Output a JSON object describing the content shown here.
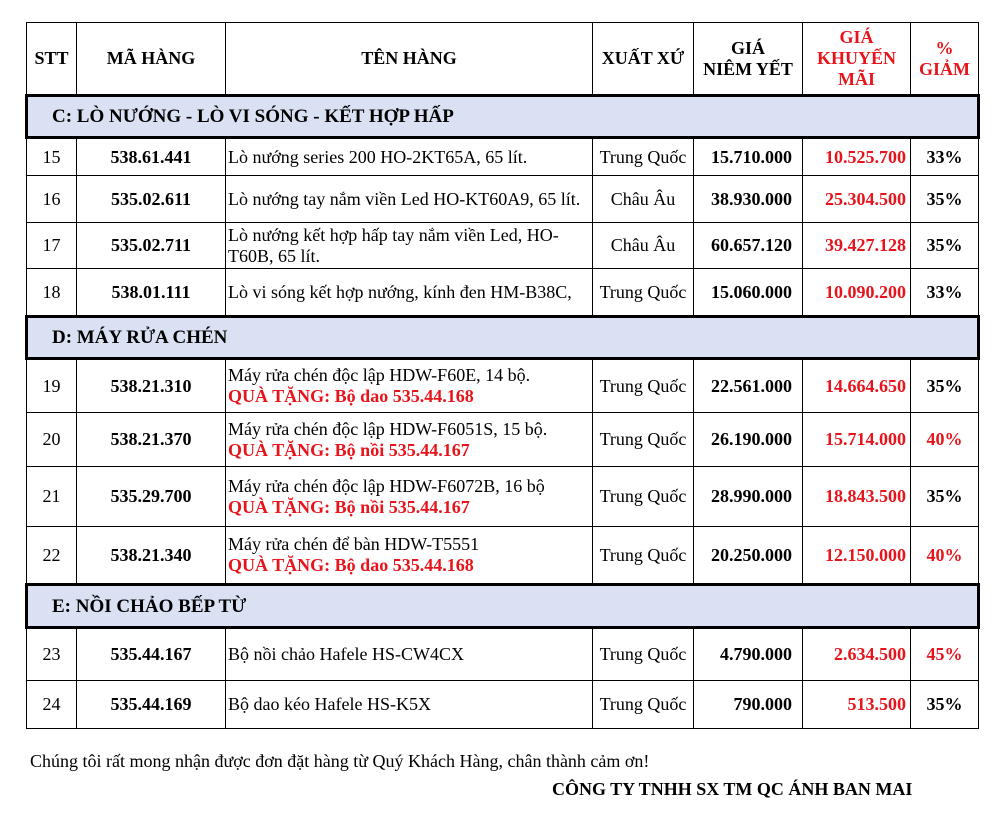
{
  "header": {
    "stt": "STT",
    "code": "MÃ HÀNG",
    "name": "TÊN HÀNG",
    "origin": "XUẤT XỨ",
    "list_price_1": "GIÁ",
    "list_price_2": "NIÊM YẾT",
    "promo_1": "GIÁ",
    "promo_2": "KHUYẾN",
    "promo_3": "MÃI",
    "discount_1": "%",
    "discount_2": "GIẢM"
  },
  "colors": {
    "red": "#e8141b",
    "section_bg": "#d9e1f2"
  },
  "sections": [
    {
      "title": "C: LÒ NƯỚNG - LÒ VI SÓNG - KẾT HỢP HẤP",
      "rows": [
        {
          "stt": "15",
          "code": "538.61.441",
          "name": "Lò nướng series 200 HO-2KT65A, 65 lít.",
          "gift": "",
          "origin": "Trung Quốc",
          "list": "15.710.000",
          "promo": "10.525.700",
          "pct": "33%",
          "pct_red": false
        },
        {
          "stt": "16",
          "code": "535.02.611",
          "name": "Lò nướng tay nắm viền Led HO-KT60A9, 65 lít.",
          "gift": "",
          "origin": "Châu Âu",
          "list": "38.930.000",
          "promo": "25.304.500",
          "pct": "35%",
          "pct_red": false
        },
        {
          "stt": "17",
          "code": "535.02.711",
          "name": "Lò nướng kết hợp hấp tay nắm viền Led, HO-T60B, 65 lít.",
          "gift": "",
          "origin": "Châu Âu",
          "list": "60.657.120",
          "promo": "39.427.128",
          "pct": "35%",
          "pct_red": false
        },
        {
          "stt": "18",
          "code": "538.01.111",
          "name": "Lò vi sóng kết hợp nướng, kính đen HM-B38C,",
          "gift": "",
          "origin": "Trung Quốc",
          "list": "15.060.000",
          "promo": "10.090.200",
          "pct": "33%",
          "pct_red": false
        }
      ]
    },
    {
      "title": "D: MÁY RỬA CHÉN",
      "rows": [
        {
          "stt": "19",
          "code": "538.21.310",
          "name": "Máy rửa chén độc lập HDW-F60E, 14 bộ.",
          "gift": "QUÀ TẶNG: Bộ dao 535.44.168",
          "origin": "Trung Quốc",
          "list": "22.561.000",
          "promo": "14.664.650",
          "pct": "35%",
          "pct_red": false
        },
        {
          "stt": "20",
          "code": "538.21.370",
          "name": "Máy rửa chén độc lập HDW-F6051S, 15 bộ.",
          "gift": "QUÀ TẶNG: Bộ nồi 535.44.167",
          "origin": "Trung Quốc",
          "list": "26.190.000",
          "promo": "15.714.000",
          "pct": "40%",
          "pct_red": true
        },
        {
          "stt": "21",
          "code": "535.29.700",
          "name": "Máy rửa chén độc lập HDW-F6072B, 16 bộ",
          "gift": "QUÀ TẶNG: Bộ nồi 535.44.167",
          "origin": "Trung Quốc",
          "list": "28.990.000",
          "promo": "18.843.500",
          "pct": "35%",
          "pct_red": false
        },
        {
          "stt": "22",
          "code": "538.21.340",
          "name": "Máy rửa chén để bàn HDW-T5551",
          "gift": "QUÀ TẶNG: Bộ dao 535.44.168",
          "origin": "Trung Quốc",
          "list": "20.250.000",
          "promo": "12.150.000",
          "pct": "40%",
          "pct_red": true
        }
      ]
    },
    {
      "title": "E: NỒI CHẢO BẾP TỪ",
      "rows": [
        {
          "stt": "23",
          "code": "535.44.167",
          "name": "Bộ nồi chảo Hafele HS-CW4CX",
          "gift": "",
          "origin": "Trung Quốc",
          "list": "4.790.000",
          "promo": "2.634.500",
          "pct": "45%",
          "pct_red": true
        },
        {
          "stt": "24",
          "code": "535.44.169",
          "name": "Bộ dao kéo Hafele HS-K5X",
          "gift": "",
          "origin": "Trung Quốc",
          "list": "790.000",
          "promo": "513.500",
          "pct": "35%",
          "pct_red": false
        }
      ]
    }
  ],
  "footer": {
    "thanks": "Chúng tôi rất mong nhận được đơn đặt hàng từ Quý Khách Hàng, chân thành cảm ơn!",
    "company": "CÔNG TY TNHH SX TM QC ÁNH BAN MAI"
  }
}
